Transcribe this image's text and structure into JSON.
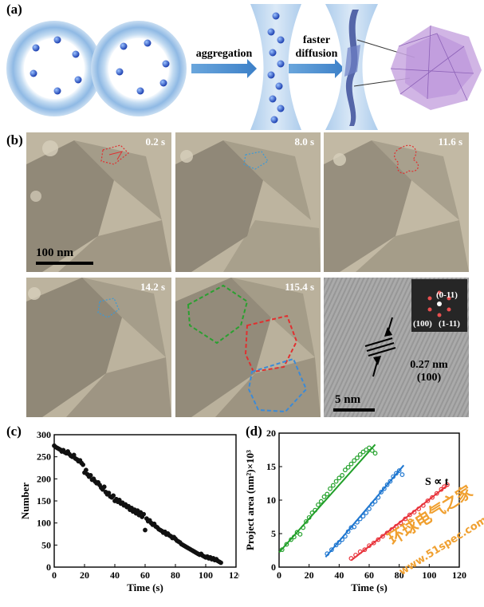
{
  "panel_a": {
    "label": "(a)",
    "arrow1_text": "aggregation",
    "arrow2_line1": "faster",
    "arrow2_line2": "diffusion"
  },
  "panel_b": {
    "label": "(b)",
    "frames": [
      {
        "time": "0.2 s"
      },
      {
        "time": "8.0 s"
      },
      {
        "time": "11.6 s"
      },
      {
        "time": "14.2 s"
      },
      {
        "time": "115.4 s"
      }
    ],
    "scale_bar_low": "100 nm",
    "scale_bar_high": "5 nm",
    "lattice_spacing": "0.27 nm",
    "lattice_plane": "(100)",
    "fft_labels": [
      "(0-11)",
      "(100)",
      "(1-11)"
    ]
  },
  "panel_c": {
    "label": "(c)"
  },
  "panel_d": {
    "label": "(d)",
    "annotation": "S ∝ t"
  },
  "watermark": {
    "line1": "环球电气之家",
    "line2": "www.51spec.com"
  },
  "chart_data": [
    {
      "type": "scatter",
      "xlabel": "Time (s)",
      "ylabel": "Number",
      "xlim": [
        0,
        120
      ],
      "ylim": [
        0,
        300
      ],
      "xticks": [
        0,
        20,
        40,
        60,
        80,
        100,
        120
      ],
      "yticks": [
        0,
        50,
        100,
        150,
        200,
        250,
        300
      ],
      "series": [
        {
          "color": "#111111",
          "x": [
            0,
            1,
            2,
            3,
            4,
            5,
            6,
            7,
            8,
            9,
            10,
            11,
            12,
            13,
            14,
            15,
            16,
            17,
            18,
            19,
            20,
            21,
            22,
            23,
            24,
            25,
            26,
            27,
            28,
            29,
            30,
            31,
            32,
            33,
            34,
            35,
            36,
            37,
            38,
            39,
            40,
            41,
            42,
            43,
            44,
            45,
            46,
            47,
            48,
            49,
            50,
            51,
            52,
            53,
            54,
            55,
            56,
            57,
            58,
            59,
            60,
            61,
            62,
            63,
            64,
            65,
            66,
            67,
            68,
            69,
            70,
            71,
            72,
            73,
            74,
            75,
            76,
            77,
            78,
            79,
            80,
            81,
            82,
            83,
            84,
            85,
            86,
            87,
            88,
            89,
            90,
            91,
            92,
            93,
            94,
            95,
            96,
            97,
            98,
            99,
            100,
            101,
            102,
            103,
            104,
            105,
            106,
            107,
            108,
            109,
            110
          ],
          "y": [
            275,
            272,
            270,
            268,
            266,
            262,
            265,
            260,
            258,
            262,
            256,
            252,
            250,
            254,
            246,
            244,
            240,
            242,
            236,
            232,
            214,
            220,
            210,
            205,
            208,
            198,
            200,
            194,
            190,
            192,
            186,
            180,
            176,
            182,
            170,
            165,
            168,
            160,
            158,
            162,
            150,
            154,
            148,
            152,
            144,
            146,
            140,
            142,
            136,
            138,
            130,
            134,
            126,
            130,
            122,
            128,
            118,
            124,
            114,
            120,
            84,
            110,
            104,
            106,
            100,
            96,
            98,
            92,
            90,
            86,
            84,
            82,
            78,
            80,
            74,
            76,
            72,
            70,
            66,
            68,
            64,
            60,
            58,
            56,
            52,
            50,
            48,
            46,
            44,
            42,
            40,
            38,
            36,
            34,
            32,
            30,
            28,
            30,
            26,
            24,
            22,
            24,
            20,
            22,
            18,
            20,
            16,
            18,
            14,
            12,
            10
          ]
        }
      ]
    },
    {
      "type": "scatter",
      "xlabel": "Time (s)",
      "ylabel": "Project area (nm²)×10³",
      "xlim": [
        0,
        120
      ],
      "ylim": [
        0,
        20
      ],
      "xticks": [
        0,
        20,
        40,
        60,
        80,
        100,
        120
      ],
      "yticks": [
        0,
        5,
        10,
        15,
        20
      ],
      "series": [
        {
          "color": "#22a02a",
          "x": [
            2,
            5,
            8,
            10,
            12,
            14,
            16,
            18,
            20,
            22,
            24,
            26,
            28,
            30,
            32,
            34,
            36,
            38,
            40,
            42,
            44,
            46,
            48,
            50,
            52,
            54,
            56,
            58,
            60,
            62,
            64
          ],
          "y": [
            2.6,
            3.4,
            4.1,
            4.5,
            5.2,
            4.9,
            5.9,
            6.8,
            7.4,
            8.1,
            8.5,
            9.3,
            9.8,
            10.5,
            10.9,
            11.7,
            12.2,
            12.8,
            13.3,
            13.7,
            14.5,
            14.9,
            15.4,
            15.9,
            16.3,
            16.8,
            17.2,
            17.5,
            17.8,
            17.4,
            17.0
          ],
          "fit": [
            [
              0,
              2.2
            ],
            [
              64,
              18.3
            ]
          ]
        },
        {
          "color": "#1f77d0",
          "x": [
            32,
            35,
            38,
            40,
            42,
            44,
            46,
            48,
            50,
            52,
            54,
            56,
            58,
            60,
            62,
            64,
            66,
            68,
            70,
            72,
            74,
            76,
            78,
            80,
            82
          ],
          "y": [
            2.0,
            2.6,
            3.3,
            3.7,
            4.1,
            4.6,
            5.3,
            5.9,
            6.0,
            6.7,
            7.2,
            7.6,
            8.1,
            8.7,
            9.4,
            9.8,
            10.4,
            11.2,
            11.7,
            12.3,
            12.8,
            13.5,
            14.0,
            14.4,
            13.8
          ],
          "fit": [
            [
              31,
              1.5
            ],
            [
              83,
              15.2
            ]
          ]
        },
        {
          "color": "#e8343c",
          "x": [
            48,
            51,
            54,
            57,
            60,
            63,
            66,
            69,
            72,
            75,
            78,
            81,
            84,
            87,
            90,
            93,
            96,
            99,
            102,
            105,
            108,
            110,
            112
          ],
          "y": [
            1.3,
            1.8,
            2.3,
            2.6,
            3.2,
            3.6,
            4.1,
            4.6,
            5.1,
            5.6,
            6.1,
            6.6,
            7.2,
            7.8,
            8.2,
            8.7,
            9.2,
            9.9,
            10.4,
            11.0,
            11.6,
            12.0,
            12.3
          ],
          "fit": [
            [
              48,
              1.0
            ],
            [
              112,
              12.2
            ]
          ]
        }
      ]
    }
  ]
}
